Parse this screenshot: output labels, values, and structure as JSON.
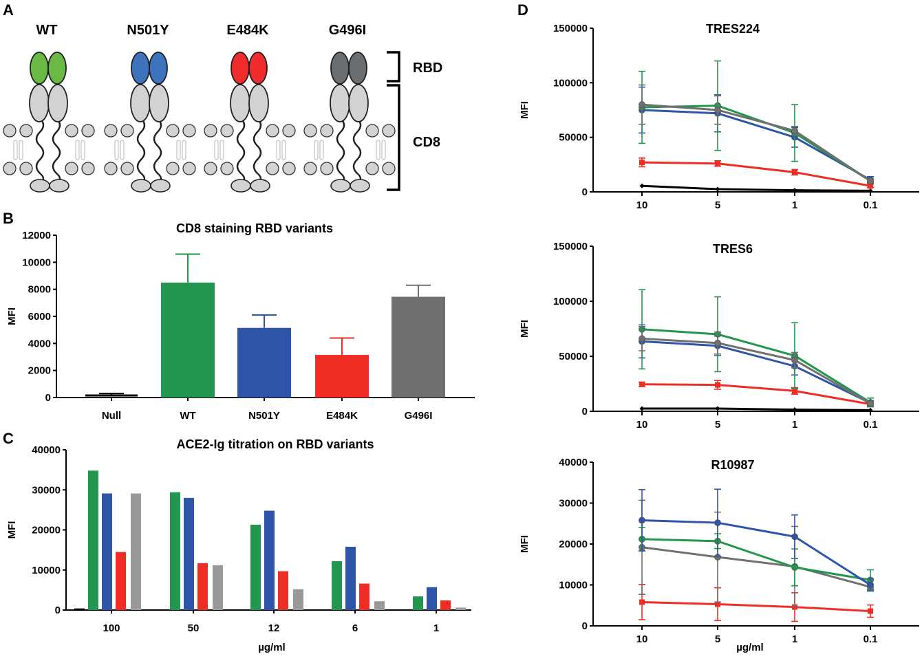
{
  "panel_labels": {
    "a": "A",
    "b": "B",
    "c": "C",
    "d": "D"
  },
  "colors": {
    "wt": "#22964f",
    "n501y": "#2f55a8",
    "e484k": "#ee2e24",
    "g496i": "#707070",
    "null": "#000000"
  },
  "panel_a": {
    "variants": [
      {
        "label": "WT",
        "color": "#6ab945"
      },
      {
        "label": "N501Y",
        "color": "#3d72bd"
      },
      {
        "label": "E484K",
        "color": "#ef2b2b"
      },
      {
        "label": "G496I",
        "color": "#6b6e70"
      }
    ],
    "bracket_labels": {
      "rbd": "RBD",
      "cd8": "CD8"
    }
  },
  "chart_data": [
    {
      "id": "B",
      "type": "bar",
      "title": "CD8 staining RBD variants",
      "xlabel": "",
      "ylabel": "MFI",
      "categories": [
        "Null",
        "WT",
        "N501Y",
        "E484K",
        "G496I"
      ],
      "values": [
        150,
        8500,
        5150,
        3150,
        7450
      ],
      "errors": [
        150,
        2100,
        950,
        1250,
        850
      ],
      "colors": [
        "#000000",
        "#22964f",
        "#2f55a8",
        "#ee2e24",
        "#707070"
      ],
      "ylim": [
        0,
        12000
      ],
      "yticks": [
        "0",
        "2000",
        "4000",
        "6000",
        "8000",
        "10000",
        "12000"
      ],
      "ytick_values": [
        0,
        2000,
        4000,
        6000,
        8000,
        10000,
        12000
      ]
    },
    {
      "id": "C",
      "type": "bar",
      "title": "ACE2-Ig titration on RBD variants",
      "xlabel": "µg/ml",
      "ylabel": "MFI",
      "categories": [
        "100",
        "50",
        "12",
        "6",
        "1"
      ],
      "series": [
        {
          "name": "Null",
          "color": "#000000",
          "values": [
            400,
            null,
            null,
            null,
            null
          ]
        },
        {
          "name": "WT",
          "color": "#22964f",
          "values": [
            34800,
            29400,
            21300,
            12200,
            3400
          ]
        },
        {
          "name": "N501Y",
          "color": "#2f55a8",
          "values": [
            29100,
            28000,
            24800,
            15800,
            5700
          ]
        },
        {
          "name": "E484K",
          "color": "#ee2e24",
          "values": [
            14500,
            11700,
            9700,
            6600,
            2400
          ]
        },
        {
          "name": "G496I",
          "color": "#999999",
          "values": [
            29100,
            11200,
            5200,
            2200,
            600
          ]
        }
      ],
      "ylim": [
        0,
        40000
      ],
      "yticks": [
        "0",
        "10000",
        "20000",
        "30000",
        "40000"
      ],
      "ytick_values": [
        0,
        10000,
        20000,
        30000,
        40000
      ]
    },
    {
      "id": "D1",
      "type": "line",
      "title": "TRES224",
      "xlabel": "",
      "ylabel": "MFI",
      "x": [
        "10",
        "5",
        "1",
        "0.1"
      ],
      "ylim": [
        0,
        150000
      ],
      "yticks": [
        "0",
        "50000",
        "100000",
        "150000"
      ],
      "ytick_values": [
        0,
        50000,
        100000,
        150000
      ],
      "series": [
        {
          "name": "Null",
          "color": "#000000",
          "marker": "diamond",
          "values": [
            5500,
            2500,
            1500,
            1000
          ],
          "errors": [
            0,
            0,
            0,
            0
          ]
        },
        {
          "name": "E484K",
          "color": "#ee2e24",
          "marker": "square",
          "values": [
            27000,
            26000,
            18000,
            5500
          ],
          "errors": [
            4000,
            2500,
            2500,
            1500
          ]
        },
        {
          "name": "N501Y",
          "color": "#2f55a8",
          "marker": "circle",
          "values": [
            75000,
            72000,
            50000,
            11000
          ],
          "errors": [
            21000,
            17000,
            9000,
            3000
          ]
        },
        {
          "name": "WT",
          "color": "#22964f",
          "marker": "circle",
          "values": [
            77500,
            79000,
            54000,
            10000
          ],
          "errors": [
            33000,
            41000,
            26000,
            2000
          ]
        },
        {
          "name": "G496I",
          "color": "#707070",
          "marker": "circle",
          "values": [
            80000,
            75000,
            56000,
            10000
          ],
          "errors": [
            18000,
            13000,
            4000,
            1500
          ]
        }
      ]
    },
    {
      "id": "D2",
      "type": "line",
      "title": "TRES6",
      "xlabel": "",
      "ylabel": "MFI",
      "x": [
        "10",
        "5",
        "1",
        "0.1"
      ],
      "ylim": [
        0,
        150000
      ],
      "yticks": [
        "0",
        "50000",
        "100000",
        "150000"
      ],
      "ytick_values": [
        0,
        50000,
        100000,
        150000
      ],
      "series": [
        {
          "name": "Null",
          "color": "#000000",
          "marker": "diamond",
          "values": [
            2500,
            2500,
            1500,
            1000
          ],
          "errors": [
            0,
            0,
            0,
            0
          ]
        },
        {
          "name": "E484K",
          "color": "#ee2e24",
          "marker": "square",
          "values": [
            24500,
            24000,
            18500,
            6500
          ],
          "errors": [
            2000,
            4000,
            3000,
            1500
          ]
        },
        {
          "name": "N501Y",
          "color": "#2f55a8",
          "marker": "circle",
          "values": [
            63500,
            59500,
            41000,
            7500
          ],
          "errors": [
            15000,
            9000,
            8000,
            2000
          ]
        },
        {
          "name": "WT",
          "color": "#22964f",
          "marker": "circle",
          "values": [
            74500,
            70000,
            50500,
            8000
          ],
          "errors": [
            36000,
            34000,
            30000,
            4000
          ]
        },
        {
          "name": "G496I",
          "color": "#707070",
          "marker": "circle",
          "values": [
            66000,
            62000,
            46500,
            7000
          ],
          "errors": [
            11000,
            10000,
            7000,
            2000
          ]
        }
      ]
    },
    {
      "id": "D3",
      "type": "line",
      "title": "R10987",
      "xlabel": "µg/ml",
      "ylabel": "MFI",
      "x": [
        "10",
        "5",
        "1",
        "0.1"
      ],
      "ylim": [
        0,
        40000
      ],
      "yticks": [
        "0",
        "10000",
        "20000",
        "30000",
        "40000"
      ],
      "ytick_values": [
        0,
        10000,
        20000,
        30000,
        40000
      ],
      "series": [
        {
          "name": "E484K",
          "color": "#ee2e24",
          "marker": "square",
          "values": [
            5800,
            5300,
            4600,
            3600
          ],
          "errors": [
            4300,
            4000,
            3500,
            1500
          ]
        },
        {
          "name": "G496I",
          "color": "#707070",
          "marker": "circle",
          "values": [
            19200,
            16800,
            14500,
            9500
          ],
          "errors": [
            11500,
            11000,
            9800,
            600
          ]
        },
        {
          "name": "WT",
          "color": "#22964f",
          "marker": "circle",
          "values": [
            21200,
            20700,
            14300,
            11200
          ],
          "errors": [
            2800,
            1800,
            4500,
            2500
          ]
        },
        {
          "name": "N501Y",
          "color": "#2f55a8",
          "marker": "circle",
          "values": [
            25800,
            25200,
            21800,
            10000
          ],
          "errors": [
            7500,
            8200,
            5300,
            1500
          ]
        }
      ]
    }
  ]
}
